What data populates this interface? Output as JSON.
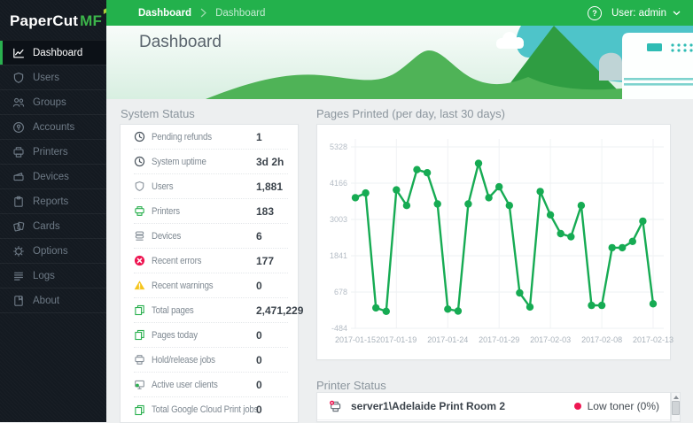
{
  "app": {
    "logo_primary": "PaperCut",
    "logo_suffix": "MF"
  },
  "topbar": {
    "breadcrumbs": [
      "Dashboard",
      "Dashboard"
    ],
    "help_label": "?",
    "user_label": "User: admin"
  },
  "hero": {
    "title": "Dashboard"
  },
  "sidebar": {
    "items": [
      {
        "label": "Dashboard",
        "active": true
      },
      {
        "label": "Users"
      },
      {
        "label": "Groups"
      },
      {
        "label": "Accounts"
      },
      {
        "label": "Printers"
      },
      {
        "label": "Devices"
      },
      {
        "label": "Reports"
      },
      {
        "label": "Cards"
      },
      {
        "label": "Options"
      },
      {
        "label": "Logs"
      },
      {
        "label": "About"
      }
    ]
  },
  "system_status": {
    "title": "System Status",
    "rows": [
      {
        "icon": "clock-icon",
        "label": "Pending refunds",
        "value": "1"
      },
      {
        "icon": "clock-icon",
        "label": "System uptime",
        "value": "3d 2h"
      },
      {
        "icon": "shield-icon",
        "label": "Users",
        "value": "1,881"
      },
      {
        "icon": "printer-icon",
        "label": "Printers",
        "value": "183"
      },
      {
        "icon": "devices-icon",
        "label": "Devices",
        "value": "6"
      },
      {
        "icon": "error-icon",
        "label": "Recent errors",
        "value": "177"
      },
      {
        "icon": "warning-icon",
        "label": "Recent warnings",
        "value": "0"
      },
      {
        "icon": "pages-icon",
        "label": "Total pages",
        "value": "2,471,229"
      },
      {
        "icon": "pages-icon",
        "label": "Pages today",
        "value": "0"
      },
      {
        "icon": "printer-icon",
        "label": "Hold/release jobs",
        "value": "0"
      },
      {
        "icon": "monitor-icon",
        "label": "Active user clients",
        "value": "0"
      },
      {
        "icon": "pages-icon",
        "label": "Total Google Cloud Print jobs",
        "value": "0"
      }
    ]
  },
  "chart_panel": {
    "title": "Pages Printed (per day, last 30 days)"
  },
  "chart_data": {
    "type": "line",
    "title": "Pages Printed (per day, last 30 days)",
    "x_tick_labels": [
      "2017-01-15",
      "2017-01-19",
      "2017-01-24",
      "2017-01-29",
      "2017-02-03",
      "2017-02-08",
      "2017-02-13"
    ],
    "x_tick_indices": [
      0,
      4,
      9,
      14,
      19,
      24,
      29
    ],
    "y_ticks": [
      5328,
      4166,
      3003,
      1841,
      678,
      -484
    ],
    "ylim": [
      -484,
      5328
    ],
    "grid": true,
    "legend": "none",
    "series": [
      {
        "name": "Pages printed per day",
        "color": "#16ab53",
        "values": [
          3700,
          3850,
          170,
          60,
          3950,
          3450,
          4600,
          4500,
          3500,
          130,
          70,
          3500,
          4800,
          3700,
          4050,
          3450,
          650,
          200,
          3900,
          3150,
          2550,
          2450,
          3450,
          250,
          250,
          2100,
          2100,
          2300,
          2950,
          300
        ]
      }
    ]
  },
  "printer_status": {
    "title": "Printer Status",
    "rows": [
      {
        "name": "server1\\Adelaide Print Room 2",
        "status": "Low toner (0%)",
        "status_color": "#ee1652"
      }
    ]
  },
  "colors": {
    "brand_green": "#23b14c",
    "sidebar_dark": "#141a21",
    "error_red": "#ee1652",
    "warning_yellow": "#f5c51d",
    "chart_line": "#16ab53",
    "teal_sky": "#4ec4c9"
  }
}
